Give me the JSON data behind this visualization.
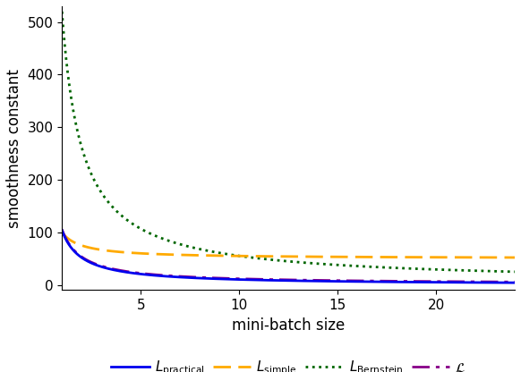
{
  "xlabel": "mini-batch size",
  "ylabel": "smoothness constant",
  "xlim": [
    1,
    24
  ],
  "ylim": [
    -10,
    530
  ],
  "xticks": [
    5,
    10,
    15,
    20
  ],
  "yticks": [
    0,
    100,
    200,
    300,
    400,
    500
  ],
  "n_val": 25,
  "L_mean": 4.0,
  "L_max_val": 100.0,
  "colors": {
    "practical": "#0000ee",
    "simple": "#ffaa00",
    "bernstein": "#006600",
    "script_L": "#880088"
  },
  "fig_width": 5.82,
  "fig_height": 4.16,
  "dpi": 100
}
